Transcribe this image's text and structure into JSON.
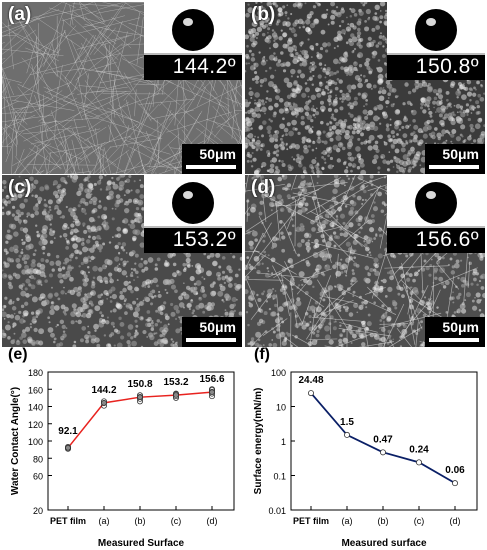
{
  "panels": [
    {
      "label": "(a)",
      "angle": "144.2º",
      "scale": "50μm"
    },
    {
      "label": "(b)",
      "angle": "150.8º",
      "scale": "50μm"
    },
    {
      "label": "(c)",
      "angle": "153.2º",
      "scale": "50μm"
    },
    {
      "label": "(d)",
      "angle": "156.6º",
      "scale": "50μm"
    }
  ],
  "charts": {
    "e_label": "(e)",
    "f_label": "(f)"
  },
  "chart_data": [
    {
      "type": "line",
      "categories": [
        "PET film",
        "(a)",
        "(b)",
        "(c)",
        "(d)"
      ],
      "values": [
        92.1,
        144.2,
        150.8,
        153.2,
        156.6
      ],
      "data_labels": [
        "92.1",
        "144.2",
        "150.8",
        "153.2",
        "156.6"
      ],
      "title": "",
      "xlabel": "Measured Surface",
      "ylabel": "Water Contact Angle(°)",
      "ylim": [
        20,
        180
      ],
      "yticks": [
        "20",
        "60",
        "80",
        "100",
        "120",
        "140",
        "160",
        "180"
      ],
      "scatter_points": [
        [
          0,
          [
            91,
            92,
            93
          ]
        ],
        [
          1,
          [
            141,
            144,
            146
          ]
        ],
        [
          2,
          [
            146,
            149,
            151,
            153
          ]
        ],
        [
          3,
          [
            150,
            152,
            154,
            155
          ]
        ],
        [
          4,
          [
            152,
            155,
            157,
            159,
            160
          ]
        ]
      ],
      "line_color": "#e8231f"
    },
    {
      "type": "line",
      "categories": [
        "PET film",
        "(a)",
        "(b)",
        "(c)",
        "(d)"
      ],
      "values": [
        24.48,
        1.5,
        0.47,
        0.24,
        0.06
      ],
      "data_labels": [
        "24.48",
        "1.5",
        "0.47",
        "0.24",
        "0.06"
      ],
      "title": "",
      "xlabel": "Measured surface",
      "ylabel": "Surface energy(mN/m)",
      "ylim": [
        0.01,
        100
      ],
      "log_scale": true,
      "yticks": [
        "0.01",
        "0.1",
        "1",
        "10",
        "100"
      ],
      "line_color": "#0a1f66"
    }
  ]
}
